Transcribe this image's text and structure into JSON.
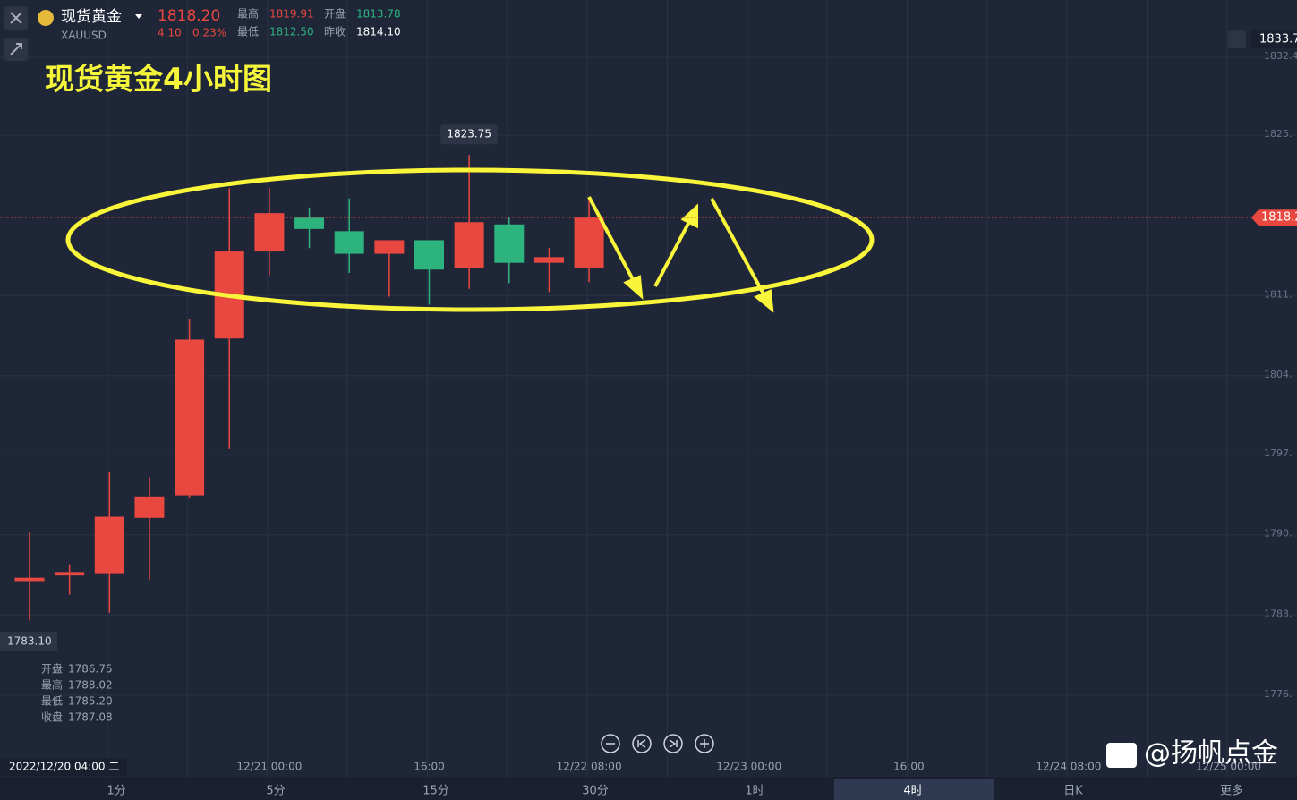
{
  "header": {
    "name": "现货黄金",
    "symbol": "XAUUSD",
    "price": "1818.20",
    "change": "4.10",
    "change_pct": "0.23%",
    "stats": [
      {
        "label": "最高",
        "value": "1819.91"
      },
      {
        "label": "开盘",
        "value": "1813.78"
      },
      {
        "label": "最低",
        "value": "1812.50"
      },
      {
        "label": "昨收",
        "value": "1814.10"
      }
    ]
  },
  "chart_data": {
    "type": "candlestick",
    "title": "现货黄金4小时图",
    "open": [
      1786.0,
      1786.5,
      1786.7,
      1791.6,
      1793.6,
      1807.5,
      1815.2,
      1818.2,
      1817.0,
      1815.0,
      1816.2,
      1813.7,
      1817.6,
      1814.2,
      1813.78
    ],
    "high": [
      1790.4,
      1787.5,
      1795.7,
      1795.2,
      1809.2,
      1820.8,
      1820.8,
      1819.1,
      1819.9,
      1816.2,
      1816.2,
      1823.75,
      1818.2,
      1815.5,
      1819.91
    ],
    "low": [
      1782.5,
      1784.8,
      1783.2,
      1786.1,
      1793.4,
      1797.7,
      1813.1,
      1815.5,
      1813.3,
      1811.2,
      1810.5,
      1811.9,
      1812.4,
      1811.6,
      1812.5
    ],
    "close": [
      1786.3,
      1786.8,
      1791.7,
      1793.5,
      1807.4,
      1815.2,
      1818.6,
      1817.2,
      1815.0,
      1816.2,
      1813.6,
      1817.8,
      1814.2,
      1814.7,
      1818.2
    ],
    "up_color": "#e8483f",
    "down_color": "#2db37e",
    "ylim": [
      1770.5,
      1835.1
    ],
    "yticks": [
      {
        "value": 1775.9,
        "label": "1776."
      },
      {
        "value": 1783.0,
        "label": "1783."
      },
      {
        "value": 1790.1,
        "label": "1790."
      },
      {
        "value": 1797.2,
        "label": "1797."
      },
      {
        "value": 1804.2,
        "label": "1804."
      },
      {
        "value": 1811.3,
        "label": "1811."
      },
      {
        "value": 1825.5,
        "label": "1825."
      },
      1832.4
    ],
    "x_labels": [
      "12/21 00:00",
      "16:00",
      "12/22 08:00",
      "12/23 00:00",
      "16:00",
      "12/24 08:00",
      "12/25 00:00"
    ],
    "crosshair": {
      "price": "1783.10",
      "time": "2022/12/20 04:00 二"
    },
    "price_tags": {
      "top": "1833.7",
      "current": "1818.2"
    },
    "info": [
      {
        "label": "开盘",
        "value": "1786.75"
      },
      {
        "label": "最高",
        "value": "1788.02"
      },
      {
        "label": "最低",
        "value": "1785.20"
      },
      {
        "label": "收盘",
        "value": "1787.08"
      }
    ]
  },
  "toolbar": [
    "1分",
    "5分",
    "15分",
    "30分",
    "1时",
    "4时",
    "日K",
    "更多"
  ],
  "watermark": "@扬帆点金"
}
